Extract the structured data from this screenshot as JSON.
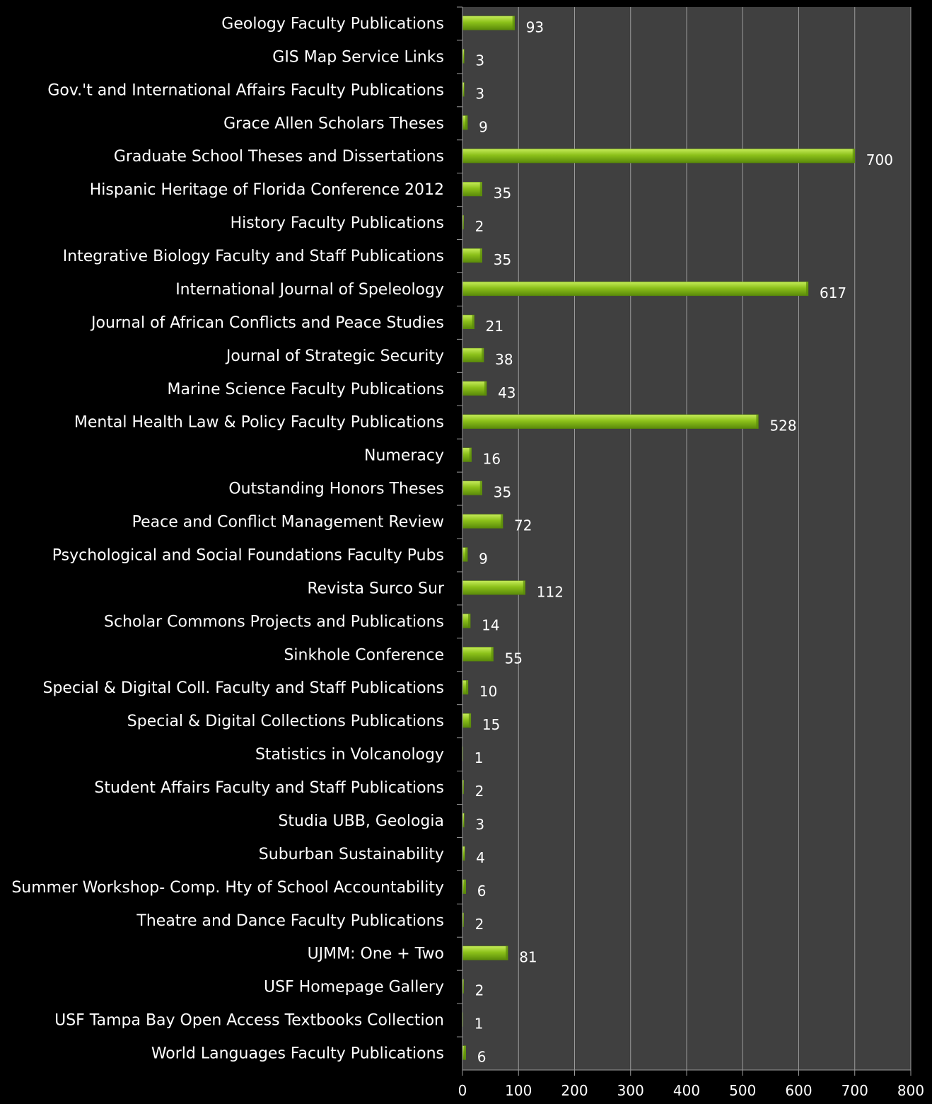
{
  "chart_data": {
    "type": "bar",
    "orientation": "horizontal",
    "categories": [
      "Geology Faculty Publications",
      "GIS Map Service Links",
      "Gov.'t and International Affairs Faculty Publications",
      "Grace Allen Scholars Theses",
      "Graduate School Theses and Dissertations",
      "Hispanic Heritage of Florida Conference 2012",
      "History Faculty Publications",
      "Integrative Biology Faculty and Staff Publications",
      "International Journal of Speleology",
      "Journal of African Conflicts and Peace Studies",
      "Journal of Strategic Security",
      "Marine Science Faculty Publications",
      "Mental Health Law & Policy Faculty Publications",
      "Numeracy",
      "Outstanding Honors Theses",
      "Peace and Conflict Management Review",
      "Psychological and Social Foundations Faculty Pubs",
      "Revista Surco Sur",
      "Scholar Commons Projects and Publications",
      "Sinkhole Conference",
      "Special & Digital Coll. Faculty and Staff Publications",
      "Special & Digital Collections Publications",
      "Statistics in Volcanology",
      "Student Affairs Faculty and Staff Publications",
      "Studia UBB, Geologia",
      "Suburban Sustainability",
      "Summer Workshop- Comp. Hty of School Accountability",
      "Theatre and Dance Faculty Publications",
      "UJMM: One + Two",
      "USF Homepage Gallery",
      "USF Tampa Bay Open Access Textbooks Collection",
      "World Languages Faculty Publications"
    ],
    "values": [
      93,
      3,
      3,
      9,
      700,
      35,
      2,
      35,
      617,
      21,
      38,
      43,
      528,
      16,
      35,
      72,
      9,
      112,
      14,
      55,
      10,
      15,
      1,
      2,
      3,
      4,
      6,
      2,
      81,
      2,
      1,
      6
    ],
    "xlim": [
      0,
      800
    ],
    "xticks": [
      "0",
      "100",
      "200",
      "300",
      "400",
      "500",
      "600",
      "700",
      "800"
    ],
    "grid": true,
    "colors": {
      "background": "#000000",
      "plot_area": "#404040",
      "bar": "#8cc11a",
      "bar_light": "#c6ec5a",
      "bar_dark": "#5a8a0a",
      "gridline": "#9a9a9a",
      "text": "#ffffff"
    }
  }
}
